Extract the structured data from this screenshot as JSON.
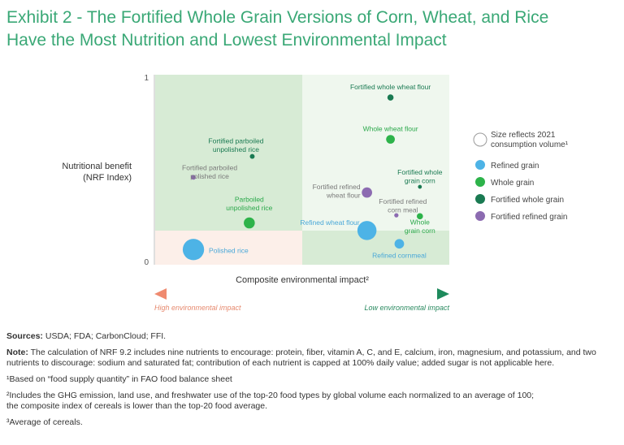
{
  "title_line1": "Exhibit 2 - The Fortified Whole Grain Versions of Corn, Wheat, and Rice",
  "title_line2": "Have the Most Nutrition and Lowest Environmental Impact",
  "colors": {
    "refined": "#4db3e6",
    "whole": "#2db34a",
    "fortified_whole": "#1a7a52",
    "fortified_refined": "#8c6bb1",
    "quad_top_left": "#d7ebd5",
    "quad_top_right": "#eff7ee",
    "quad_bottom_left": "#fcefe9",
    "quad_bottom_right": "#d7ebd5"
  },
  "chart_data": {
    "type": "scatter",
    "xlabel": "Composite environmental impact²",
    "ylabel_line1": "Nutritional benefit",
    "ylabel_line2": "(NRF Index)",
    "y_ticks": [
      "1",
      "0"
    ],
    "ylim": [
      0,
      1
    ],
    "arrow_left_label": "High environmental impact",
    "arrow_right_label": "Low environmental impact",
    "legend": {
      "size_note_line1": "Size reflects 2021",
      "size_note_line2": "consumption volume¹",
      "items": [
        {
          "label": "Refined grain",
          "color": "#4db3e6"
        },
        {
          "label": "Whole grain",
          "color": "#2db34a"
        },
        {
          "label": "Fortified whole grain",
          "color": "#1a7a52"
        },
        {
          "label": "Fortified refined grain",
          "color": "#8c6bb1"
        }
      ]
    },
    "points": [
      {
        "label_lines": [
          "Fortified whole wheat flour"
        ],
        "category": "fortified_whole",
        "x": 0.8,
        "y": 0.88,
        "volume": 2.5
      },
      {
        "label_lines": [
          "Whole wheat flour"
        ],
        "category": "whole",
        "x": 0.8,
        "y": 0.66,
        "volume": 5
      },
      {
        "label_lines": [
          "Fortified parboiled",
          "unpolished rice"
        ],
        "category": "fortified_whole",
        "x": 0.33,
        "y": 0.57,
        "volume": 1.5
      },
      {
        "label_lines": [
          "Fortified parboiled",
          "polished rice"
        ],
        "category": "fortified_refined",
        "x": 0.13,
        "y": 0.46,
        "volume": 1.5
      },
      {
        "label_lines": [
          "Fortified whole",
          "grain corn"
        ],
        "category": "fortified_whole",
        "x": 0.9,
        "y": 0.41,
        "volume": 1
      },
      {
        "label_lines": [
          "Fortified refined",
          "wheat flour"
        ],
        "category": "fortified_refined",
        "x": 0.72,
        "y": 0.38,
        "volume": 7
      },
      {
        "label_lines": [
          "Fortified refined",
          "corn meal"
        ],
        "category": "fortified_refined",
        "x": 0.82,
        "y": 0.26,
        "volume": 1.2
      },
      {
        "label_lines": [
          "Whole",
          "grain corn"
        ],
        "category": "whole",
        "x": 0.9,
        "y": 0.255,
        "volume": 2.5
      },
      {
        "label_lines": [
          "Parboiled",
          "unpolished rice"
        ],
        "category": "whole",
        "x": 0.32,
        "y": 0.22,
        "volume": 8
      },
      {
        "label_lines": [
          "Refined wheat flour"
        ],
        "category": "refined",
        "x": 0.72,
        "y": 0.18,
        "volume": 24
      },
      {
        "label_lines": [
          "Refined cornmeal"
        ],
        "category": "refined",
        "x": 0.83,
        "y": 0.11,
        "volume": 6
      },
      {
        "label_lines": [
          "Polished rice"
        ],
        "category": "refined",
        "x": 0.13,
        "y": 0.08,
        "volume": 30
      }
    ]
  },
  "footnotes": {
    "sources_label": "Sources:",
    "sources_text": " USDA; FDA; CarbonCloud; FFI.",
    "note_label": "Note:",
    "note_text": " The calculation of NRF 9.2 includes nine nutrients to encourage: protein, fiber, vitamin A, C, and E, calcium, iron, magnesium, and potassium, and two nutrients to discourage: sodium and saturated fat; contribution of each nutrient is capped at 100% daily value; added sugar is not applicable here.",
    "fn1": "¹Based on “food supply quantity” in FAO food balance sheet",
    "fn2_line1": "²Includes the GHG emission, land use, and freshwater use of the top-20 food types by global volume each normalized to an average of 100;",
    "fn2_line2": "the composite index of cereals is lower than the top-20 food average.",
    "fn3": "³Average of cereals."
  }
}
